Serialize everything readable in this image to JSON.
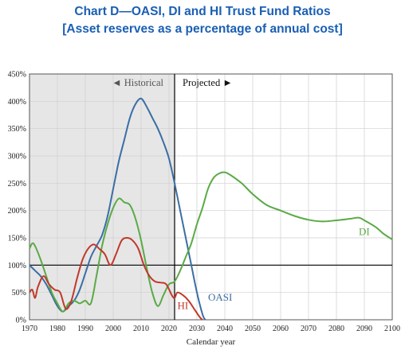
{
  "chart_data": {
    "type": "line",
    "title": "Chart D—OASI, DI and HI Trust Fund Ratios",
    "subtitle": "[Asset reserves as a percentage of annual cost]",
    "xlabel": "Calendar year",
    "ylabel": "",
    "xlim": [
      1970,
      2100
    ],
    "ylim": [
      0,
      450
    ],
    "x_ticks": [
      1970,
      1980,
      1990,
      2000,
      2010,
      2020,
      2030,
      2040,
      2050,
      2060,
      2070,
      2080,
      2090,
      2100
    ],
    "y_ticks": [
      0,
      50,
      100,
      150,
      200,
      250,
      300,
      350,
      400,
      450
    ],
    "y_tick_suffix": "%",
    "grid": true,
    "regions": [
      {
        "label": "◄ Historical",
        "from": 1970,
        "to": 2022,
        "shaded": true
      },
      {
        "label": "Projected ►",
        "from": 2022,
        "to": 2100,
        "shaded": false
      }
    ],
    "reference_lines": [
      {
        "y": 100
      },
      {
        "x": 2022
      }
    ],
    "series": [
      {
        "name": "OASI",
        "color": "#3a6ea5",
        "points": [
          [
            1970,
            100
          ],
          [
            1972,
            90
          ],
          [
            1974,
            80
          ],
          [
            1976,
            65
          ],
          [
            1978,
            45
          ],
          [
            1980,
            25
          ],
          [
            1982,
            15
          ],
          [
            1984,
            25
          ],
          [
            1986,
            35
          ],
          [
            1988,
            55
          ],
          [
            1990,
            85
          ],
          [
            1992,
            115
          ],
          [
            1994,
            135
          ],
          [
            1996,
            155
          ],
          [
            1998,
            190
          ],
          [
            2000,
            240
          ],
          [
            2002,
            290
          ],
          [
            2004,
            330
          ],
          [
            2006,
            370
          ],
          [
            2008,
            395
          ],
          [
            2010,
            405
          ],
          [
            2012,
            390
          ],
          [
            2014,
            370
          ],
          [
            2016,
            350
          ],
          [
            2018,
            325
          ],
          [
            2020,
            295
          ],
          [
            2022,
            250
          ],
          [
            2024,
            200
          ],
          [
            2026,
            150
          ],
          [
            2028,
            100
          ],
          [
            2030,
            50
          ],
          [
            2032,
            10
          ],
          [
            2033,
            0
          ]
        ]
      },
      {
        "name": "DI",
        "color": "#5aaa46",
        "points": [
          [
            1970,
            130
          ],
          [
            1971,
            140
          ],
          [
            1972,
            135
          ],
          [
            1974,
            110
          ],
          [
            1976,
            80
          ],
          [
            1978,
            50
          ],
          [
            1980,
            30
          ],
          [
            1982,
            15
          ],
          [
            1984,
            30
          ],
          [
            1986,
            35
          ],
          [
            1988,
            30
          ],
          [
            1990,
            35
          ],
          [
            1992,
            30
          ],
          [
            1994,
            80
          ],
          [
            1996,
            135
          ],
          [
            1998,
            175
          ],
          [
            2000,
            205
          ],
          [
            2002,
            222
          ],
          [
            2004,
            215
          ],
          [
            2006,
            210
          ],
          [
            2008,
            185
          ],
          [
            2010,
            145
          ],
          [
            2012,
            95
          ],
          [
            2014,
            50
          ],
          [
            2016,
            25
          ],
          [
            2018,
            45
          ],
          [
            2020,
            65
          ],
          [
            2022,
            70
          ],
          [
            2024,
            90
          ],
          [
            2026,
            115
          ],
          [
            2028,
            140
          ],
          [
            2030,
            175
          ],
          [
            2032,
            205
          ],
          [
            2034,
            240
          ],
          [
            2036,
            260
          ],
          [
            2038,
            268
          ],
          [
            2040,
            270
          ],
          [
            2042,
            265
          ],
          [
            2046,
            250
          ],
          [
            2050,
            230
          ],
          [
            2055,
            210
          ],
          [
            2060,
            200
          ],
          [
            2065,
            190
          ],
          [
            2070,
            183
          ],
          [
            2075,
            180
          ],
          [
            2080,
            182
          ],
          [
            2085,
            185
          ],
          [
            2088,
            187
          ],
          [
            2090,
            182
          ],
          [
            2094,
            170
          ],
          [
            2097,
            157
          ],
          [
            2100,
            147
          ]
        ]
      },
      {
        "name": "HI",
        "color": "#c0392b",
        "points": [
          [
            1970,
            50
          ],
          [
            1971,
            55
          ],
          [
            1972,
            40
          ],
          [
            1973,
            60
          ],
          [
            1975,
            80
          ],
          [
            1977,
            65
          ],
          [
            1979,
            55
          ],
          [
            1981,
            50
          ],
          [
            1983,
            20
          ],
          [
            1985,
            35
          ],
          [
            1987,
            75
          ],
          [
            1989,
            110
          ],
          [
            1991,
            130
          ],
          [
            1993,
            138
          ],
          [
            1995,
            130
          ],
          [
            1997,
            120
          ],
          [
            1999,
            100
          ],
          [
            2001,
            120
          ],
          [
            2003,
            145
          ],
          [
            2005,
            150
          ],
          [
            2007,
            145
          ],
          [
            2009,
            130
          ],
          [
            2011,
            100
          ],
          [
            2013,
            80
          ],
          [
            2015,
            70
          ],
          [
            2017,
            68
          ],
          [
            2019,
            65
          ],
          [
            2021,
            45
          ],
          [
            2022,
            40
          ],
          [
            2023,
            50
          ],
          [
            2025,
            45
          ],
          [
            2027,
            35
          ],
          [
            2029,
            20
          ],
          [
            2031,
            5
          ],
          [
            2032,
            0
          ]
        ]
      }
    ],
    "series_labels": [
      {
        "text": "OASI",
        "x": 2034,
        "y": 35
      },
      {
        "text": "DI",
        "x": 2088,
        "y": 155
      },
      {
        "text": "HI",
        "x": 2023,
        "y": 20
      }
    ]
  }
}
